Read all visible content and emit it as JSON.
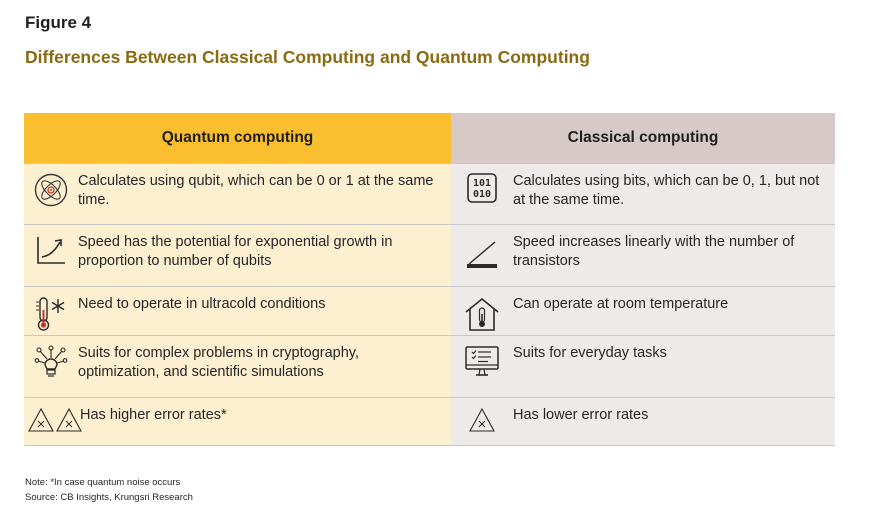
{
  "figure_label": "Figure 4",
  "title": "Differences Between Classical Computing and Quantum Computing",
  "headers": {
    "quantum": "Quantum computing",
    "classical": "Classical computing"
  },
  "rows": [
    {
      "quantum_icon": "atom-icon",
      "quantum_text": "Calculates using qubit, which can be 0 or 1 at the same time.",
      "classical_icon": "binary-101-010-icon",
      "classical_icon_text_top": "101",
      "classical_icon_text_bottom": "010",
      "classical_text": "Calculates using bits, which can be 0, 1, but not at  the same time."
    },
    {
      "quantum_icon": "exponential-growth-chart-icon",
      "quantum_text": "Speed has the potential for exponential growth in proportion to number of qubits",
      "classical_icon": "linear-slope-icon",
      "classical_text": "Speed increases linearly with the number of transistors"
    },
    {
      "quantum_icon": "thermometer-snowflake-icon",
      "quantum_text": "Need to operate in ultracold conditions",
      "classical_icon": "house-thermometer-icon",
      "classical_text": "Can operate at room temperature"
    },
    {
      "quantum_icon": "complex-problem-network-icon",
      "quantum_text": "Suits for complex problems in cryptography, optimization, and scientific simulations",
      "classical_icon": "desktop-computer-checklist-icon",
      "classical_text": "Suits for everyday tasks"
    },
    {
      "quantum_icon": "double-error-triangle-icon",
      "quantum_text": "Has higher error rates*",
      "classical_icon": "single-error-triangle-icon",
      "classical_text": "Has lower error rates"
    }
  ],
  "note": "Note: *In case quantum noise occurs",
  "source": "Source: CB Insights, Krungsri Research",
  "colors": {
    "title": "#8a6a12",
    "quantum_header": "#fbbe2e",
    "classical_header": "#d6c9c7",
    "quantum_cell": "#fdf0d1",
    "classical_cell": "#eeeaea"
  }
}
